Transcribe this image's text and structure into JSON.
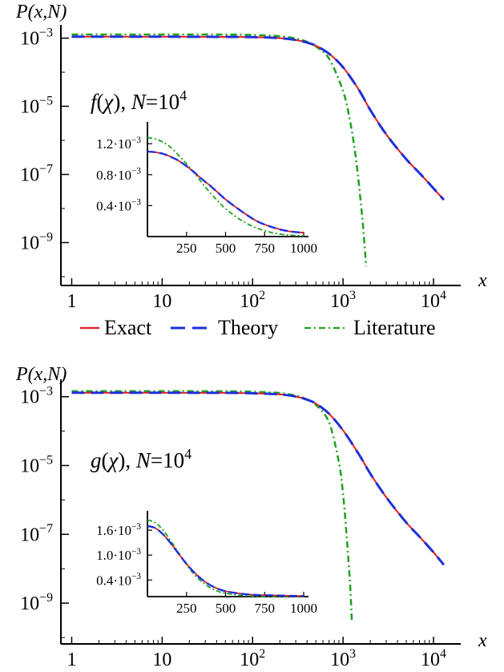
{
  "colors": {
    "exact": "#e41a1c",
    "theory": "#1f2fd9",
    "literature": "#1fa21f",
    "axis": "#000000"
  },
  "legend": [
    {
      "key": "exact",
      "label": "Exact",
      "dash": "solid"
    },
    {
      "key": "theory",
      "label": "Theory",
      "dash": "dashed"
    },
    {
      "key": "literature",
      "label": "Literature",
      "dash": "dashdot"
    }
  ],
  "chart_data": [
    {
      "type": "line",
      "ylabel": "P(x,N)",
      "xlabel": "x",
      "annotation": {
        "func": "f",
        "arg": "χ",
        "text": ", N=10",
        "sup": "4"
      },
      "x_scale": "log",
      "y_scale": "log",
      "xlim": [
        0.7,
        20000
      ],
      "ylim": [
        1e-10,
        0.0022
      ],
      "x_ticks": [
        {
          "base": "1",
          "sup": "",
          "value": 1
        },
        {
          "base": "10",
          "sup": "",
          "value": 10
        },
        {
          "base": "10",
          "sup": "2",
          "value": 100
        },
        {
          "base": "10",
          "sup": "3",
          "value": 1000
        },
        {
          "base": "10",
          "sup": "4",
          "value": 10000
        }
      ],
      "y_ticks": [
        {
          "base": "10",
          "sup": "−3",
          "value": 0.001
        },
        {
          "base": "10",
          "sup": "−5",
          "value": 1e-05
        },
        {
          "base": "10",
          "sup": "−7",
          "value": 1e-07
        },
        {
          "base": "10",
          "sup": "−9",
          "value": 1e-09
        }
      ],
      "series": [
        {
          "name": "Exact",
          "key": "exact",
          "x": [
            1,
            10,
            50,
            100,
            200,
            300,
            400,
            500,
            700,
            1000,
            1500,
            2000,
            3000,
            5000,
            7000,
            10000,
            13000
          ],
          "y": [
            0.0011,
            0.0011,
            0.00109,
            0.00107,
            0.001,
            0.00088,
            0.00074,
            0.0006,
            0.00035,
            0.00014,
            3e-05,
            7.8e-06,
            1.5e-06,
            2.8e-07,
            1.1e-07,
            3.9e-08,
            1.8e-08
          ]
        },
        {
          "name": "Theory",
          "key": "theory",
          "x": [
            1,
            10,
            50,
            100,
            200,
            300,
            400,
            500,
            700,
            1000,
            1500,
            2000,
            3000,
            5000,
            7000,
            10000,
            13000
          ],
          "y": [
            0.0011,
            0.0011,
            0.00109,
            0.00107,
            0.001,
            0.00088,
            0.00074,
            0.0006,
            0.00035,
            0.00014,
            3e-05,
            7.8e-06,
            1.5e-06,
            2.8e-07,
            1.1e-07,
            3.9e-08,
            1.8e-08
          ]
        },
        {
          "name": "Literature",
          "key": "literature",
          "x": [
            1,
            10,
            50,
            100,
            200,
            300,
            400,
            500,
            700,
            1000,
            1200,
            1400,
            1600,
            1700,
            1800
          ],
          "y": [
            0.00128,
            0.00128,
            0.00127,
            0.00124,
            0.00114,
            0.00098,
            0.00078,
            0.00057,
            0.00025,
            2.8e-05,
            3.5e-06,
            2.5e-07,
            9e-09,
            1.5e-09,
            2e-10
          ]
        }
      ],
      "inset": {
        "type": "line",
        "xlim": [
          0,
          1000
        ],
        "ylim": [
          0,
          0.00142
        ],
        "x_ticks": [
          {
            "label": "250",
            "value": 250
          },
          {
            "label": "500",
            "value": 500
          },
          {
            "label": "750",
            "value": 750
          },
          {
            "label": "1000",
            "value": 1000
          }
        ],
        "y_ticks": [
          {
            "label": "1.2·10",
            "sup": "−3",
            "value": 0.0012
          },
          {
            "label": "0.8·10",
            "sup": "−3",
            "value": 0.0008
          },
          {
            "label": "0.4·10",
            "sup": "−3",
            "value": 0.0004
          }
        ],
        "series": [
          {
            "name": "Exact",
            "key": "exact",
            "x": [
              0,
              50,
              100,
              150,
              200,
              250,
              300,
              350,
              400,
              450,
              500,
              600,
              700,
              800,
              900,
              1000
            ],
            "y": [
              0.0011,
              0.00109,
              0.00107,
              0.00103,
              0.00098,
              0.00091,
              0.00083,
              0.00074,
              0.00066,
              0.00057,
              0.00048,
              0.00033,
              0.0002,
              0.00012,
              7e-05,
              5e-05
            ]
          },
          {
            "name": "Theory",
            "key": "theory",
            "x": [
              0,
              50,
              100,
              150,
              200,
              250,
              300,
              350,
              400,
              450,
              500,
              600,
              700,
              800,
              900,
              1000
            ],
            "y": [
              0.0011,
              0.00109,
              0.00107,
              0.00103,
              0.00098,
              0.00091,
              0.00083,
              0.00074,
              0.00066,
              0.00057,
              0.00048,
              0.00033,
              0.0002,
              0.00012,
              7e-05,
              5e-05
            ]
          },
          {
            "name": "Literature",
            "key": "literature",
            "x": [
              0,
              50,
              100,
              150,
              200,
              250,
              300,
              350,
              400,
              450,
              500,
              600,
              700,
              800,
              900,
              1000
            ],
            "y": [
              0.00128,
              0.00126,
              0.00122,
              0.00115,
              0.00105,
              0.00094,
              0.00082,
              0.00069,
              0.00057,
              0.00046,
              0.00036,
              0.00021,
              0.00011,
              5e-05,
              2e-05,
              1e-05
            ]
          }
        ]
      }
    },
    {
      "type": "line",
      "ylabel": "P(x,N)",
      "xlabel": "x",
      "annotation": {
        "func": "g",
        "arg": "χ",
        "text": ", N=10",
        "sup": "4"
      },
      "x_scale": "log",
      "y_scale": "log",
      "xlim": [
        0.7,
        20000
      ],
      "ylim": [
        1e-10,
        0.0022
      ],
      "x_ticks": [
        {
          "base": "1",
          "sup": "",
          "value": 1
        },
        {
          "base": "10",
          "sup": "",
          "value": 10
        },
        {
          "base": "10",
          "sup": "2",
          "value": 100
        },
        {
          "base": "10",
          "sup": "3",
          "value": 1000
        },
        {
          "base": "10",
          "sup": "4",
          "value": 10000
        }
      ],
      "y_ticks": [
        {
          "base": "10",
          "sup": "−3",
          "value": 0.001
        },
        {
          "base": "10",
          "sup": "−5",
          "value": 1e-05
        },
        {
          "base": "10",
          "sup": "−7",
          "value": 1e-07
        },
        {
          "base": "10",
          "sup": "−9",
          "value": 1e-09
        }
      ],
      "series": [
        {
          "name": "Exact",
          "key": "exact",
          "x": [
            1,
            10,
            50,
            100,
            200,
            300,
            400,
            500,
            700,
            1000,
            1500,
            2000,
            3000,
            5000,
            7000,
            10000,
            13000
          ],
          "y": [
            0.0013,
            0.0013,
            0.00129,
            0.00126,
            0.00117,
            0.00101,
            0.00082,
            0.00063,
            0.00032,
            0.000105,
            2.1e-05,
            5.8e-06,
            1.2e-06,
            2.2e-07,
            8.5e-08,
            3e-08,
            1.3e-08
          ]
        },
        {
          "name": "Theory",
          "key": "theory",
          "x": [
            1,
            10,
            50,
            100,
            200,
            300,
            400,
            500,
            700,
            1000,
            1500,
            2000,
            3000,
            5000,
            7000,
            10000,
            13000
          ],
          "y": [
            0.0013,
            0.0013,
            0.00129,
            0.00126,
            0.00117,
            0.00101,
            0.00082,
            0.00063,
            0.00032,
            0.000105,
            2.1e-05,
            5.8e-06,
            1.2e-06,
            2.2e-07,
            8.5e-08,
            3e-08,
            1.3e-08
          ]
        },
        {
          "name": "Literature",
          "key": "literature",
          "x": [
            1,
            10,
            50,
            100,
            200,
            300,
            400,
            500,
            700,
            900,
            1000,
            1100,
            1200,
            1250
          ],
          "y": [
            0.00145,
            0.00145,
            0.00144,
            0.0014,
            0.00128,
            0.00108,
            0.00083,
            0.00058,
            0.00018,
            1.2e-05,
            1.5e-06,
            8e-08,
            3e-09,
            3e-10
          ]
        }
      ],
      "inset": {
        "type": "line",
        "xlim": [
          0,
          1000
        ],
        "ylim": [
          0,
          0.00195
        ],
        "x_ticks": [
          {
            "label": "250",
            "value": 250
          },
          {
            "label": "500",
            "value": 500
          },
          {
            "label": "750",
            "value": 750
          },
          {
            "label": "1000",
            "value": 1000
          }
        ],
        "y_ticks": [
          {
            "label": "1.6·10",
            "sup": "−3",
            "value": 0.0016
          },
          {
            "label": "1.0·10",
            "sup": "−3",
            "value": 0.001
          },
          {
            "label": "0.4·10",
            "sup": "−3",
            "value": 0.0004
          }
        ],
        "series": [
          {
            "name": "Exact",
            "key": "exact",
            "x": [
              0,
              50,
              100,
              150,
              200,
              250,
              300,
              350,
              400,
              450,
              500,
              600,
              700,
              800,
              900,
              1000
            ],
            "y": [
              0.0017,
              0.00165,
              0.0015,
              0.00128,
              0.00103,
              0.00079,
              0.00058,
              0.00041,
              0.00028,
              0.00019,
              0.00013,
              7e-05,
              4e-05,
              3e-05,
              2e-05,
              1.5e-05
            ]
          },
          {
            "name": "Theory",
            "key": "theory",
            "x": [
              0,
              50,
              100,
              150,
              200,
              250,
              300,
              350,
              400,
              450,
              500,
              600,
              700,
              800,
              900,
              1000
            ],
            "y": [
              0.0017,
              0.00165,
              0.0015,
              0.00128,
              0.00103,
              0.00079,
              0.00058,
              0.00041,
              0.00028,
              0.00019,
              0.00013,
              7e-05,
              4e-05,
              3e-05,
              2e-05,
              1.5e-05
            ]
          },
          {
            "name": "Literature",
            "key": "literature",
            "x": [
              0,
              50,
              100,
              150,
              200,
              250,
              300,
              350,
              400,
              450,
              500,
              600,
              700,
              800,
              900,
              1000
            ],
            "y": [
              0.00185,
              0.00178,
              0.0016,
              0.00134,
              0.00105,
              0.00077,
              0.00053,
              0.00035,
              0.00022,
              0.00013,
              8e-05,
              3e-05,
              1e-05,
              5e-06,
              2e-06,
              1e-06
            ]
          }
        ]
      }
    }
  ]
}
